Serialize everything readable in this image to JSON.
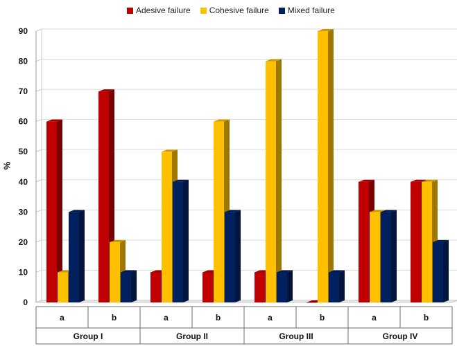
{
  "chart_data": {
    "type": "bar",
    "style": "3d-clustered-column",
    "ylabel": "%",
    "ylim": [
      0,
      90
    ],
    "yticks": [
      0,
      10,
      20,
      30,
      40,
      50,
      60,
      70,
      80,
      90
    ],
    "grid": true,
    "legend_position": "top",
    "groups": [
      {
        "label": "Group I",
        "subcategories": [
          "a",
          "b"
        ]
      },
      {
        "label": "Group II",
        "subcategories": [
          "a",
          "b"
        ]
      },
      {
        "label": "Group III",
        "subcategories": [
          "a",
          "b"
        ]
      },
      {
        "label": "Group IV",
        "subcategories": [
          "a",
          "b"
        ]
      }
    ],
    "categories": [
      "a",
      "b",
      "a",
      "b",
      "a",
      "b",
      "a",
      "b"
    ],
    "series": [
      {
        "name": "Adesive failure",
        "color": "#c00000",
        "values": [
          60,
          70,
          10,
          10,
          10,
          0,
          40,
          40
        ]
      },
      {
        "name": "Cohesive failure",
        "color": "#ffc000",
        "values": [
          10,
          20,
          50,
          60,
          80,
          90,
          30,
          40
        ]
      },
      {
        "name": "Mixed failure",
        "color": "#002060",
        "values": [
          30,
          10,
          40,
          30,
          10,
          10,
          30,
          20
        ]
      }
    ]
  }
}
